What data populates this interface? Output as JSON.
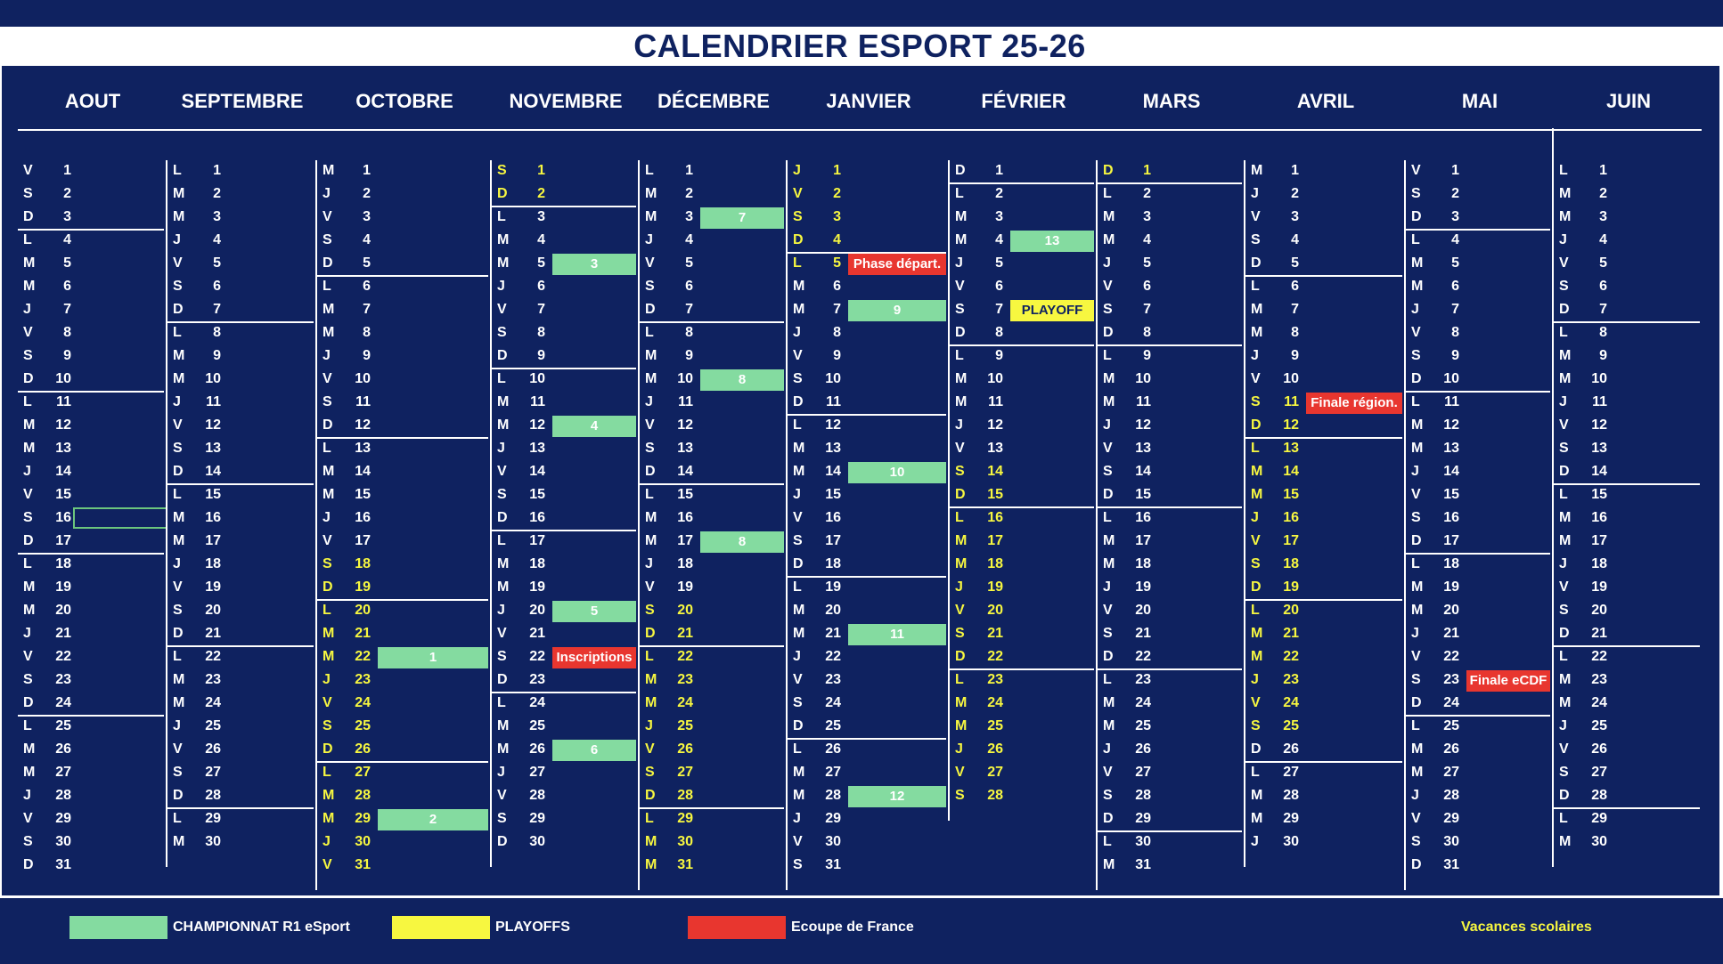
{
  "title": "CALENDRIER ESPORT 25-26",
  "colors": {
    "navy": "#0f2260",
    "championnat": "#84dba0",
    "playoffs": "#f7f740",
    "coupe": "#e8362f",
    "holiday_text": "#f7f740"
  },
  "months": [
    {
      "name": "AOUT",
      "days": [
        "V",
        "S",
        "D",
        "L",
        "M",
        "M",
        "J",
        "V",
        "S",
        "D",
        "L",
        "M",
        "M",
        "J",
        "V",
        "S",
        "D",
        "L",
        "M",
        "M",
        "J",
        "V",
        "S",
        "D",
        "L",
        "M",
        "M",
        "J",
        "V",
        "S",
        "D"
      ],
      "holidays": []
    },
    {
      "name": "SEPTEMBRE",
      "days": [
        "L",
        "M",
        "M",
        "J",
        "V",
        "S",
        "D",
        "L",
        "M",
        "M",
        "J",
        "V",
        "S",
        "D",
        "L",
        "M",
        "M",
        "J",
        "V",
        "S",
        "D",
        "L",
        "M",
        "M",
        "J",
        "V",
        "S",
        "D",
        "L",
        "M"
      ],
      "holidays": []
    },
    {
      "name": "OCTOBRE",
      "days": [
        "M",
        "J",
        "V",
        "S",
        "D",
        "L",
        "M",
        "M",
        "J",
        "V",
        "S",
        "D",
        "L",
        "M",
        "M",
        "J",
        "V",
        "S",
        "D",
        "L",
        "M",
        "M",
        "J",
        "V",
        "S",
        "D",
        "L",
        "M",
        "M",
        "J",
        "V"
      ],
      "holidays": [
        18,
        19,
        20,
        21,
        22,
        23,
        24,
        25,
        26,
        27,
        28,
        29,
        30,
        31
      ]
    },
    {
      "name": "NOVEMBRE",
      "days": [
        "S",
        "D",
        "L",
        "M",
        "M",
        "J",
        "V",
        "S",
        "D",
        "L",
        "M",
        "M",
        "J",
        "V",
        "S",
        "D",
        "L",
        "M",
        "M",
        "J",
        "V",
        "S",
        "D",
        "L",
        "M",
        "M",
        "J",
        "V",
        "S",
        "D"
      ],
      "holidays": [
        1,
        2
      ]
    },
    {
      "name": "DÉCEMBRE",
      "days": [
        "L",
        "M",
        "M",
        "J",
        "V",
        "S",
        "D",
        "L",
        "M",
        "M",
        "J",
        "V",
        "S",
        "D",
        "L",
        "M",
        "M",
        "J",
        "V",
        "S",
        "D",
        "L",
        "M",
        "M",
        "J",
        "V",
        "S",
        "D",
        "L",
        "M",
        "M"
      ],
      "holidays": [
        20,
        21,
        22,
        23,
        24,
        25,
        26,
        27,
        28,
        29,
        30,
        31
      ]
    },
    {
      "name": "JANVIER",
      "days": [
        "J",
        "V",
        "S",
        "D",
        "L",
        "M",
        "M",
        "J",
        "V",
        "S",
        "D",
        "L",
        "M",
        "M",
        "J",
        "V",
        "S",
        "D",
        "L",
        "M",
        "M",
        "J",
        "V",
        "S",
        "D",
        "L",
        "M",
        "M",
        "J",
        "V",
        "S"
      ],
      "holidays": [
        1,
        2,
        3,
        4,
        5
      ]
    },
    {
      "name": "FÉVRIER",
      "days": [
        "D",
        "L",
        "M",
        "M",
        "J",
        "V",
        "S",
        "D",
        "L",
        "M",
        "M",
        "J",
        "V",
        "S",
        "D",
        "L",
        "M",
        "M",
        "J",
        "V",
        "S",
        "D",
        "L",
        "M",
        "M",
        "J",
        "V",
        "S"
      ],
      "holidays": [
        14,
        15,
        16,
        17,
        18,
        19,
        20,
        21,
        22,
        23,
        24,
        25,
        26,
        27,
        28
      ]
    },
    {
      "name": "MARS",
      "days": [
        "D",
        "L",
        "M",
        "M",
        "J",
        "V",
        "S",
        "D",
        "L",
        "M",
        "M",
        "J",
        "V",
        "S",
        "D",
        "L",
        "M",
        "M",
        "J",
        "V",
        "S",
        "D",
        "L",
        "M",
        "M",
        "J",
        "V",
        "S",
        "D",
        "L",
        "M"
      ],
      "holidays": [
        1
      ]
    },
    {
      "name": "AVRIL",
      "days": [
        "M",
        "J",
        "V",
        "S",
        "D",
        "L",
        "M",
        "M",
        "J",
        "V",
        "S",
        "D",
        "L",
        "M",
        "M",
        "J",
        "V",
        "S",
        "D",
        "L",
        "M",
        "M",
        "J",
        "V",
        "S",
        "D",
        "L",
        "M",
        "M",
        "J"
      ],
      "holidays": [
        11,
        12,
        13,
        14,
        15,
        16,
        17,
        18,
        19,
        20,
        21,
        22,
        23,
        24,
        25
      ]
    },
    {
      "name": "MAI",
      "days": [
        "V",
        "S",
        "D",
        "L",
        "M",
        "M",
        "J",
        "V",
        "S",
        "D",
        "L",
        "M",
        "M",
        "J",
        "V",
        "S",
        "D",
        "L",
        "M",
        "M",
        "J",
        "V",
        "S",
        "D",
        "L",
        "M",
        "M",
        "J",
        "V",
        "S",
        "D"
      ],
      "holidays": []
    },
    {
      "name": "JUIN",
      "days": [
        "L",
        "M",
        "M",
        "J",
        "V",
        "S",
        "D",
        "L",
        "M",
        "M",
        "J",
        "V",
        "S",
        "D",
        "L",
        "M",
        "M",
        "J",
        "V",
        "S",
        "D",
        "L",
        "M",
        "M",
        "J",
        "V",
        "S",
        "D",
        "L",
        "M"
      ],
      "holidays": []
    }
  ],
  "events": [
    {
      "month": 2,
      "day": 22,
      "label": "1",
      "type": "champ"
    },
    {
      "month": 2,
      "day": 29,
      "label": "2",
      "type": "champ"
    },
    {
      "month": 3,
      "day": 5,
      "label": "3",
      "type": "champ"
    },
    {
      "month": 3,
      "day": 12,
      "label": "4",
      "type": "champ"
    },
    {
      "month": 3,
      "day": 20,
      "label": "5",
      "type": "champ"
    },
    {
      "month": 3,
      "day": 22,
      "label": "Inscriptions",
      "type": "cup"
    },
    {
      "month": 3,
      "day": 26,
      "label": "6",
      "type": "champ"
    },
    {
      "month": 4,
      "day": 3,
      "label": "7",
      "type": "champ"
    },
    {
      "month": 4,
      "day": 10,
      "label": "8",
      "type": "champ"
    },
    {
      "month": 4,
      "day": 17,
      "label": "8",
      "type": "champ"
    },
    {
      "month": 5,
      "day": 5,
      "label": "Phase départ.",
      "type": "cup"
    },
    {
      "month": 5,
      "day": 7,
      "label": "9",
      "type": "champ"
    },
    {
      "month": 5,
      "day": 14,
      "label": "10",
      "type": "champ"
    },
    {
      "month": 5,
      "day": 21,
      "label": "11",
      "type": "champ"
    },
    {
      "month": 5,
      "day": 28,
      "label": "12",
      "type": "champ"
    },
    {
      "month": 6,
      "day": 4,
      "label": "13",
      "type": "champ"
    },
    {
      "month": 6,
      "day": 7,
      "label": "PLAYOFF",
      "type": "playoff"
    },
    {
      "month": 8,
      "day": 11,
      "label": "Finale région.",
      "type": "cup"
    },
    {
      "month": 9,
      "day": 23,
      "label": "Finale eCDF",
      "type": "cup"
    }
  ],
  "legend": {
    "championnat": "CHAMPIONNAT R1 eSport",
    "playoffs": "PLAYOFFS",
    "coupe": "Ecoupe de France",
    "vacances": "Vacances scolaires"
  }
}
